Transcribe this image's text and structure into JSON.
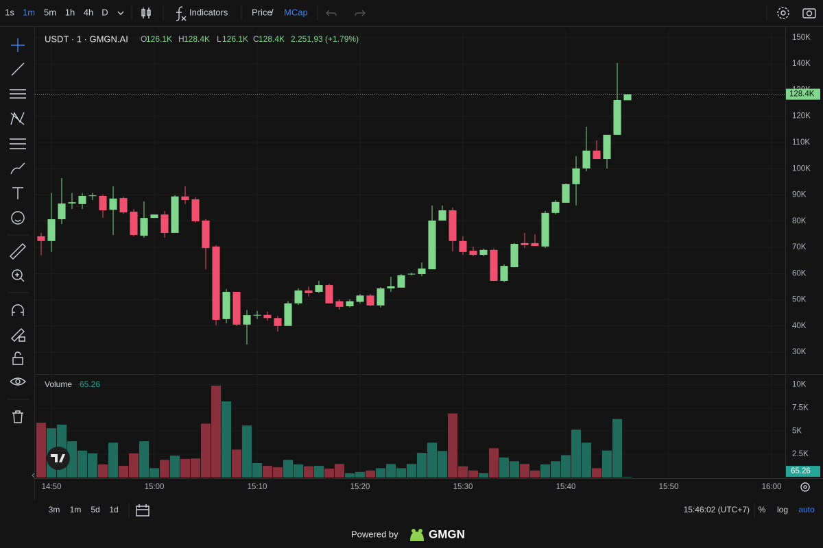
{
  "toolbar": {
    "intervals": [
      "1s",
      "1m",
      "5m",
      "1h",
      "4h",
      "D"
    ],
    "selected": 1,
    "indicators": "Indicators",
    "price": "Price",
    "separator": "/",
    "mcap": "MCap"
  },
  "legend": {
    "symbol": "USDT · 1 · GMGN.AI",
    "ohlc": [
      {
        "label": "O",
        "value": "126.1K"
      },
      {
        "label": "H",
        "value": "128.4K"
      },
      {
        "label": "L",
        "value": "126.1K"
      },
      {
        "label": "C",
        "value": "128.4K"
      }
    ],
    "change": "2.251,93 (+1.79%)"
  },
  "bottom_bar": {
    "ranges": [
      "3m",
      "1m",
      "5d",
      "1d"
    ],
    "clock": "15:46:02 (UTC+7)",
    "percent": "%",
    "log": "log",
    "auto": "auto"
  },
  "footer": {
    "powered_by": "Powered by",
    "brand": "GMGN"
  },
  "chart_data": [
    {
      "type": "candlestick",
      "x": [
        "14:49",
        "14:50",
        "14:51",
        "14:52",
        "14:53",
        "14:54",
        "14:55",
        "14:56",
        "14:57",
        "14:58",
        "14:59",
        "15:00",
        "15:01",
        "15:02",
        "15:03",
        "15:04",
        "15:05",
        "15:06",
        "15:07",
        "15:08",
        "15:09",
        "15:10",
        "15:11",
        "15:12",
        "15:13",
        "15:14",
        "15:15",
        "15:16",
        "15:17",
        "15:18",
        "15:19",
        "15:20",
        "15:21",
        "15:22",
        "15:23",
        "15:24",
        "15:25",
        "15:26",
        "15:27",
        "15:28",
        "15:29",
        "15:30",
        "15:31",
        "15:32",
        "15:33",
        "15:34",
        "15:35",
        "15:36",
        "15:37",
        "15:38",
        "15:39",
        "15:40",
        "15:41",
        "15:42",
        "15:43",
        "15:44",
        "15:45",
        "15:46"
      ],
      "open": [
        74200,
        72400,
        80700,
        86700,
        86500,
        89600,
        89600,
        84300,
        88800,
        83600,
        74400,
        81200,
        82500,
        75500,
        89400,
        88300,
        80200,
        70300,
        42600,
        53000,
        40500,
        44100,
        44200,
        43000,
        40000,
        48600,
        53500,
        53000,
        55600,
        49400,
        47500,
        49200,
        51600,
        47800,
        54300,
        54600,
        59800,
        59800,
        61600,
        80200,
        84100,
        72400,
        68700,
        67100,
        69000,
        57200,
        62400,
        71600,
        71600,
        70300,
        83100,
        87000,
        94100,
        100100,
        106900,
        103700,
        112900,
        126100
      ],
      "high": [
        75500,
        90700,
        96400,
        90700,
        90700,
        90700,
        90100,
        93300,
        89300,
        84600,
        87500,
        82500,
        83900,
        89900,
        93300,
        89100,
        80700,
        70800,
        54100,
        53000,
        46000,
        45700,
        45500,
        43800,
        49400,
        54300,
        55000,
        57200,
        56100,
        50100,
        50100,
        52200,
        52200,
        54800,
        58800,
        59800,
        60300,
        64200,
        85900,
        85900,
        85200,
        74200,
        70300,
        69500,
        69500,
        63500,
        71600,
        75500,
        75000,
        83900,
        88000,
        94300,
        104800,
        116000,
        110800,
        112900,
        140300,
        128400
      ],
      "low": [
        67000,
        68200,
        78900,
        84600,
        84600,
        88000,
        81200,
        74700,
        82800,
        74200,
        73700,
        81200,
        73700,
        75500,
        86500,
        79400,
        61600,
        40200,
        41000,
        40000,
        32900,
        42600,
        42000,
        37800,
        40000,
        48000,
        51200,
        52500,
        48600,
        46200,
        47000,
        48600,
        47500,
        47000,
        53000,
        54600,
        59300,
        59000,
        61600,
        80200,
        68400,
        67100,
        66600,
        66600,
        57200,
        56700,
        62400,
        69700,
        70500,
        69700,
        82500,
        87000,
        86000,
        99000,
        103700,
        100100,
        112900,
        126100
      ],
      "close": [
        72400,
        80700,
        86700,
        87200,
        89600,
        89800,
        84100,
        88600,
        83300,
        74700,
        81200,
        82500,
        75500,
        89400,
        88000,
        79900,
        69700,
        42300,
        53000,
        40500,
        44100,
        44200,
        43000,
        40000,
        48600,
        53500,
        52500,
        55600,
        48600,
        47300,
        49400,
        51600,
        47800,
        54300,
        55100,
        59300,
        59900,
        61900,
        80200,
        84100,
        72400,
        68200,
        67100,
        69000,
        57200,
        62900,
        71300,
        70800,
        70500,
        83100,
        87300,
        94100,
        100100,
        106900,
        103700,
        112900,
        126200,
        128400
      ],
      "up_color": "#7fd68c",
      "down_color": "#f0506e",
      "xlim": [
        "14:49",
        "16:01"
      ],
      "xticks": [
        "14:50",
        "15:00",
        "15:10",
        "15:20",
        "15:30",
        "15:40",
        "15:50",
        "16:00"
      ],
      "ylim": [
        21900,
        152600
      ],
      "yticks": [
        {
          "value": 30000,
          "label": "30K"
        },
        {
          "value": 40000,
          "label": "40K"
        },
        {
          "value": 50000,
          "label": "50K"
        },
        {
          "value": 60000,
          "label": "60K"
        },
        {
          "value": 70000,
          "label": "70K"
        },
        {
          "value": 80000,
          "label": "80K"
        },
        {
          "value": 90000,
          "label": "90K"
        },
        {
          "value": 100000,
          "label": "100K"
        },
        {
          "value": 110000,
          "label": "110K"
        },
        {
          "value": 120000,
          "label": "120K"
        },
        {
          "value": 130000,
          "label": "130K"
        },
        {
          "value": 140000,
          "label": "140K"
        },
        {
          "value": 150000,
          "label": "150K"
        }
      ],
      "grid": true
    },
    {
      "type": "bar",
      "title": "Volume",
      "values": [
        5900,
        5300,
        5700,
        3900,
        2900,
        2600,
        1400,
        3750,
        1250,
        2600,
        3900,
        1000,
        1900,
        2350,
        2000,
        2050,
        5800,
        9900,
        8200,
        3000,
        5600,
        1550,
        1250,
        1100,
        1900,
        1400,
        1200,
        1250,
        950,
        1450,
        450,
        600,
        750,
        1000,
        1450,
        1000,
        1450,
        2650,
        3750,
        2850,
        6900,
        1200,
        750,
        450,
        3150,
        2150,
        1750,
        1450,
        750,
        1400,
        1750,
        2400,
        5150,
        3750,
        1000,
        2900,
        6300,
        65.26
      ],
      "up_color": "#1f6b5c",
      "down_color": "#8a2f3c",
      "ylim": [
        0,
        11000
      ],
      "yticks": [
        {
          "value": 2500,
          "label": "2.5K"
        },
        {
          "value": 5000,
          "label": "5K"
        },
        {
          "value": 7500,
          "label": "7.5K"
        },
        {
          "value": 10000,
          "label": "10K"
        }
      ],
      "grid": true
    }
  ]
}
